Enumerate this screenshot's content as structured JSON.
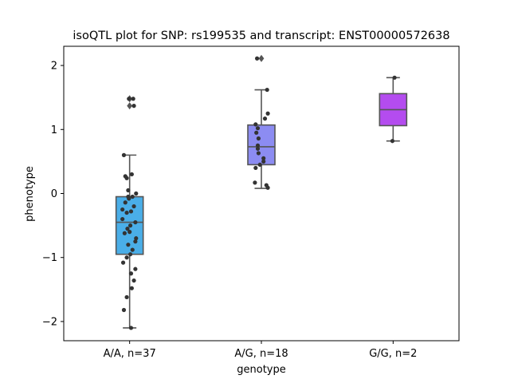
{
  "chart_data": {
    "type": "box",
    "title": "isoQTL plot for SNP: rs199535 and transcript: ENST00000572638",
    "xlabel": "genotype",
    "ylabel": "phenotype",
    "ylim": [
      -2.3,
      2.3
    ],
    "yticks": [
      {
        "value": -2,
        "label": "−2"
      },
      {
        "value": -1,
        "label": "−1"
      },
      {
        "value": 0,
        "label": "0"
      },
      {
        "value": 1,
        "label": "1"
      },
      {
        "value": 2,
        "label": "2"
      }
    ],
    "categories": [
      "A/A, n=37",
      "A/G, n=18",
      "G/G, n=2"
    ],
    "colors": {
      "box_fill": [
        "#4aaee8",
        "#8c8cf2",
        "#b44cef"
      ],
      "box_line": "#555555",
      "points": "#333333",
      "frame": "#000000"
    },
    "boxes": [
      {
        "category": "A/A, n=37",
        "q1": -0.95,
        "median": -0.45,
        "q3": -0.05,
        "whisker_low": -2.1,
        "whisker_high": 0.6,
        "outliers": [
          1.48,
          1.37
        ],
        "points": [
          [
            -0.05,
            1.48
          ],
          [
            0.3,
            1.37
          ],
          [
            0.25,
            1.48
          ],
          [
            -0.4,
            0.6
          ],
          [
            0.15,
            0.3
          ],
          [
            -0.3,
            0.27
          ],
          [
            -0.2,
            0.24
          ],
          [
            -0.1,
            0.05
          ],
          [
            0.45,
            0.0
          ],
          [
            0.2,
            -0.05
          ],
          [
            -0.05,
            -0.08
          ],
          [
            -0.3,
            -0.14
          ],
          [
            -0.5,
            -0.25
          ],
          [
            0.1,
            -0.28
          ],
          [
            -0.2,
            -0.3
          ],
          [
            -0.5,
            -0.4
          ],
          [
            0.4,
            -0.45
          ],
          [
            0.05,
            -0.5
          ],
          [
            -0.15,
            -0.55
          ],
          [
            0.0,
            -0.6
          ],
          [
            -0.35,
            -0.62
          ],
          [
            0.45,
            -0.7
          ],
          [
            0.4,
            -0.75
          ],
          [
            -0.1,
            -0.8
          ],
          [
            0.2,
            -0.88
          ],
          [
            0.05,
            -0.95
          ],
          [
            -0.2,
            -1.0
          ],
          [
            -0.45,
            -1.08
          ],
          [
            0.4,
            -1.18
          ],
          [
            0.1,
            -1.25
          ],
          [
            0.3,
            -1.36
          ],
          [
            0.15,
            -1.48
          ],
          [
            -0.2,
            -1.62
          ],
          [
            -0.4,
            -1.82
          ],
          [
            0.1,
            -2.1
          ],
          [
            -0.1,
            -0.05
          ],
          [
            0.3,
            -0.2
          ]
        ]
      },
      {
        "category": "A/G, n=18",
        "q1": 0.45,
        "median": 0.73,
        "q3": 1.07,
        "whisker_low": 0.08,
        "whisker_high": 1.62,
        "outliers": [
          2.11
        ],
        "points": [
          [
            -0.3,
            2.11
          ],
          [
            0.4,
            1.62
          ],
          [
            0.45,
            1.25
          ],
          [
            0.25,
            1.17
          ],
          [
            -0.4,
            1.08
          ],
          [
            -0.25,
            1.02
          ],
          [
            -0.35,
            0.95
          ],
          [
            -0.2,
            0.86
          ],
          [
            -0.25,
            0.75
          ],
          [
            -0.25,
            0.7
          ],
          [
            -0.2,
            0.63
          ],
          [
            0.15,
            0.55
          ],
          [
            0.15,
            0.5
          ],
          [
            -0.1,
            0.45
          ],
          [
            -0.4,
            0.4
          ],
          [
            -0.45,
            0.17
          ],
          [
            0.35,
            0.13
          ],
          [
            0.45,
            0.09
          ]
        ]
      },
      {
        "category": "G/G, n=2",
        "q1": 1.06,
        "median": 1.31,
        "q3": 1.56,
        "whisker_low": 0.82,
        "whisker_high": 1.81,
        "outliers": [],
        "points": [
          [
            0.1,
            1.81
          ],
          [
            -0.05,
            0.82
          ]
        ]
      }
    ]
  }
}
